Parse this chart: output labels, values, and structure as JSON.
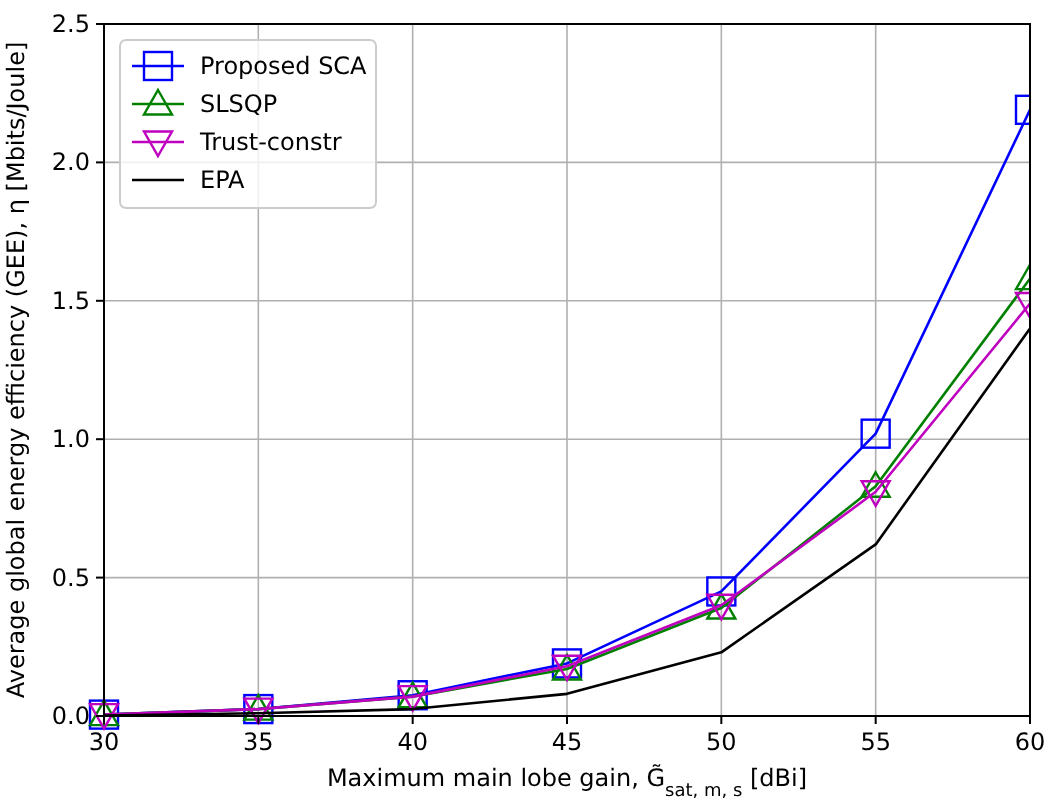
{
  "chart_data": {
    "type": "line",
    "xlabel": "Maximum main lobe gain, G̃$_{sat, m, s}$ [dBi]",
    "ylabel": "Average global energy efficiency (GEE), η [Mbits/Joule]",
    "x": [
      30,
      35,
      40,
      45,
      50,
      55,
      60
    ],
    "xlim": [
      30,
      60
    ],
    "xticks": [
      30,
      35,
      40,
      45,
      50,
      55,
      60
    ],
    "ylim": [
      0,
      2.5
    ],
    "yticks": [
      {
        "value": 0,
        "label": "0.0"
      },
      {
        "value": 0.5,
        "label": "0.5"
      },
      {
        "value": 1,
        "label": "1.0"
      },
      {
        "value": 1.5,
        "label": "1.5"
      },
      {
        "value": 2,
        "label": "2.0"
      },
      {
        "value": 2.5,
        "label": "2.5"
      }
    ],
    "grid": true,
    "legend": "top left",
    "series": [
      {
        "name": "Proposed SCA",
        "color": "#0000ff",
        "marker": "square",
        "values": [
          0.005,
          0.025,
          0.075,
          0.19,
          0.45,
          1.02,
          2.19
        ]
      },
      {
        "name": "SLSQP",
        "color": "#008000",
        "marker": "triangle",
        "values": [
          0.005,
          0.025,
          0.07,
          0.17,
          0.39,
          0.83,
          1.58
        ]
      },
      {
        "name": "Trust-constr",
        "color": "#bf00bf",
        "marker": "triangle-down",
        "values": [
          0.005,
          0.025,
          0.07,
          0.18,
          0.4,
          0.81,
          1.49
        ]
      },
      {
        "name": "EPA",
        "color": "#000000",
        "marker": "none",
        "values": [
          0.002,
          0.01,
          0.025,
          0.08,
          0.23,
          0.62,
          1.4
        ]
      }
    ]
  }
}
